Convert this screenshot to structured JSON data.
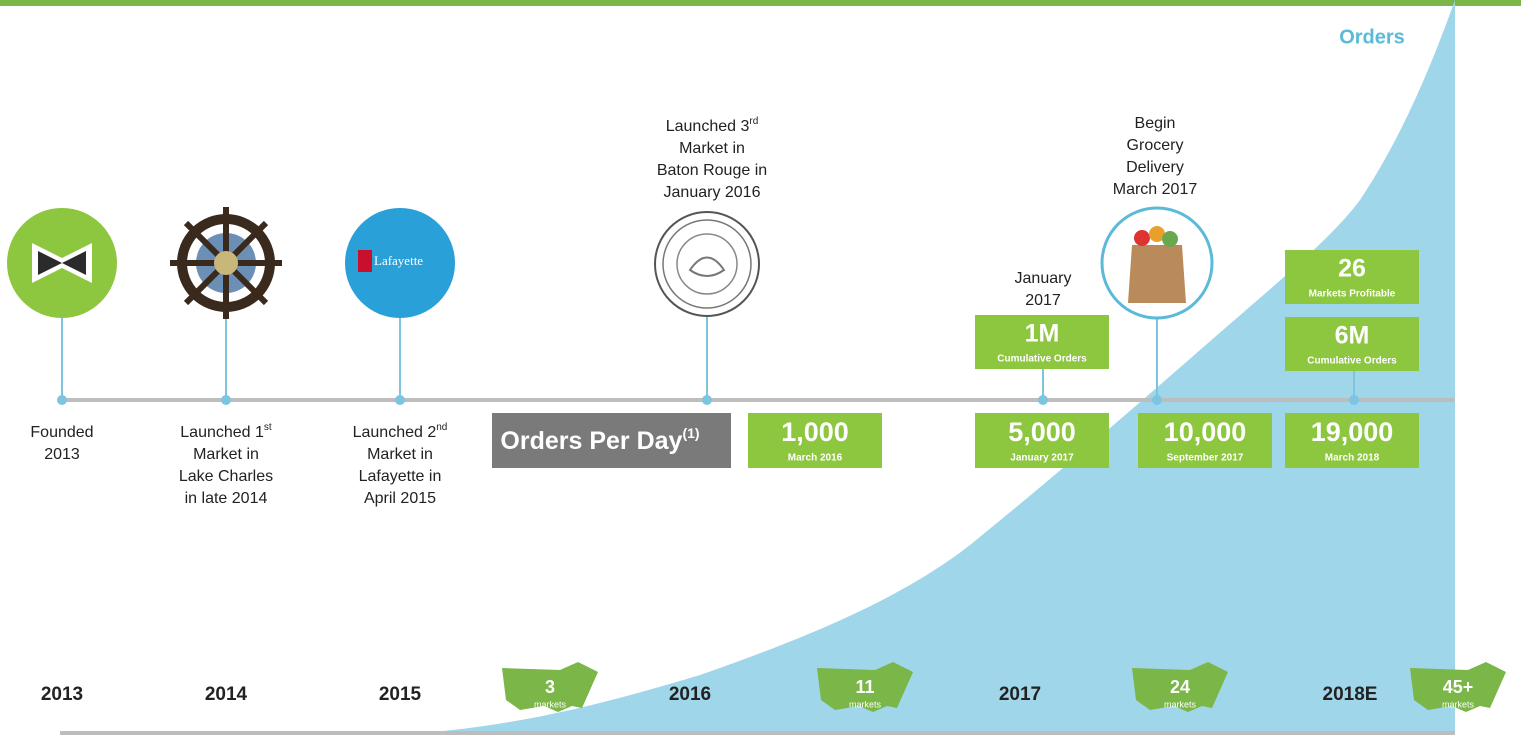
{
  "area_label": "Orders",
  "milestones": [
    {
      "lines": [
        "Founded",
        "2013"
      ]
    },
    {
      "lines": [
        "Launched 1",
        "Market in",
        "Lake Charles",
        "in late 2014"
      ],
      "sup": "st"
    },
    {
      "lines": [
        "Launched 2",
        "Market in",
        "Lafayette in",
        "April 2015"
      ],
      "sup": "nd"
    },
    {
      "lines": [
        "Launched 3",
        "Market in",
        "Baton Rouge in",
        "January 2016"
      ],
      "sup": "rd"
    },
    {
      "lines": [
        "January",
        "2017"
      ]
    },
    {
      "lines": [
        "Begin",
        "Grocery",
        "Delivery",
        "March 2017"
      ]
    }
  ],
  "logo_text": "Lafayette",
  "orders_per_day": {
    "label": "Orders Per Day",
    "sup": "(1)",
    "boxes": [
      {
        "value": "1,000",
        "date": "March 2016"
      },
      {
        "value": "5,000",
        "date": "January 2017"
      },
      {
        "value": "10,000",
        "date": "September 2017"
      },
      {
        "value": "19,000",
        "date": "March 2018"
      }
    ]
  },
  "stat_boxes": [
    {
      "value": "1M",
      "label": "Cumulative Orders"
    },
    {
      "value": "26",
      "label": "Markets Profitable"
    },
    {
      "value": "6M",
      "label": "Cumulative Orders"
    }
  ],
  "years": [
    "2013",
    "2014",
    "2015",
    "2016",
    "2017",
    "2018E"
  ],
  "markets": [
    {
      "count": "3",
      "label": "markets"
    },
    {
      "count": "11",
      "label": "markets"
    },
    {
      "count": "24",
      "label": "markets"
    },
    {
      "count": "45+",
      "label": "markets"
    }
  ]
}
